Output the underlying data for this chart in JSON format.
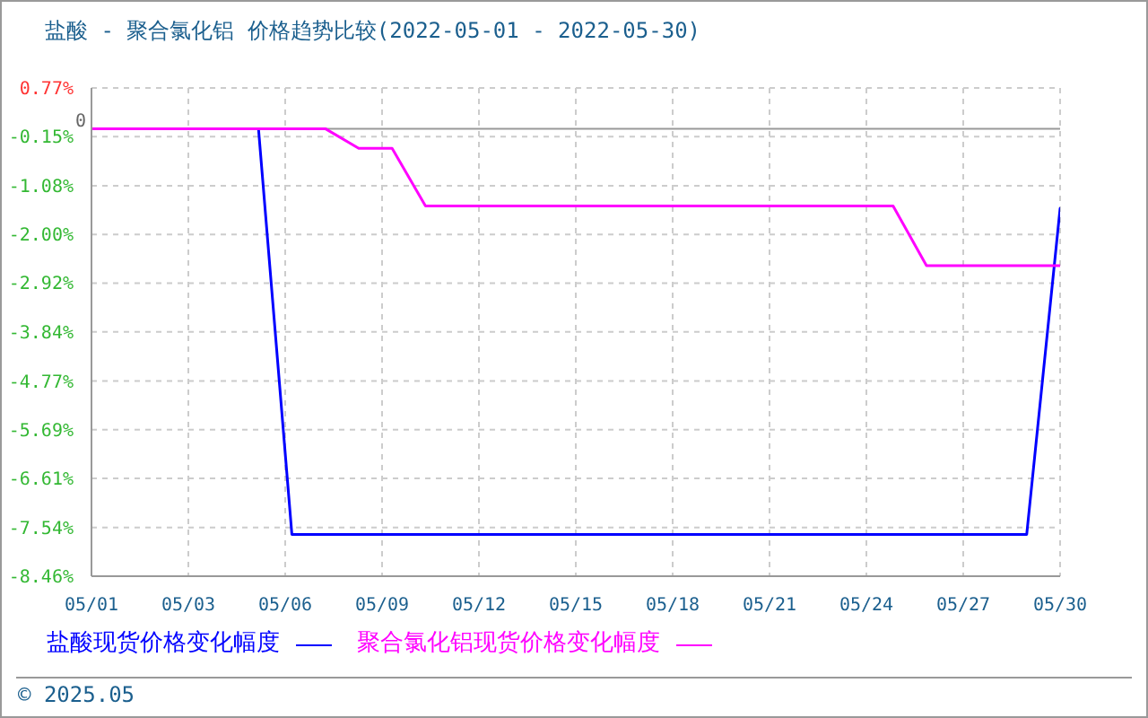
{
  "chart_data": {
    "type": "line",
    "title": "盐酸 - 聚合氯化铝 价格趋势比较(2022-05-01 - 2022-05-30)",
    "x": [
      "2022-05-01",
      "2022-05-02",
      "2022-05-03",
      "2022-05-04",
      "2022-05-05",
      "2022-05-06",
      "2022-05-07",
      "2022-05-08",
      "2022-05-09",
      "2022-05-10",
      "2022-05-11",
      "2022-05-12",
      "2022-05-13",
      "2022-05-14",
      "2022-05-15",
      "2022-05-16",
      "2022-05-17",
      "2022-05-18",
      "2022-05-19",
      "2022-05-20",
      "2022-05-21",
      "2022-05-22",
      "2022-05-23",
      "2022-05-24",
      "2022-05-25",
      "2022-05-26",
      "2022-05-27",
      "2022-05-28",
      "2022-05-29",
      "2022-05-30"
    ],
    "series": [
      {
        "name": "盐酸现货价格变化幅度",
        "color": "#0000ff",
        "values": [
          null,
          null,
          null,
          null,
          null,
          0,
          -7.67,
          -7.67,
          -7.67,
          -7.67,
          -7.67,
          -7.67,
          -7.67,
          -7.67,
          -7.67,
          -7.67,
          -7.67,
          -7.67,
          -7.67,
          -7.67,
          -7.67,
          -7.67,
          -7.67,
          -7.67,
          -7.67,
          -7.67,
          -7.67,
          -7.67,
          -7.67,
          -1.51
        ]
      },
      {
        "name": "聚合氯化铝现货价格变化幅度",
        "color": "#ff00ff",
        "values": [
          0,
          0,
          0,
          0,
          0,
          0,
          0,
          0,
          -0.37,
          -0.37,
          -1.46,
          -1.46,
          -1.46,
          -1.46,
          -1.46,
          -1.46,
          -1.46,
          -1.46,
          -1.46,
          -1.46,
          -1.46,
          -1.46,
          -1.46,
          -1.46,
          -1.46,
          -2.59,
          -2.59,
          -2.59,
          -2.59,
          -2.59
        ]
      }
    ],
    "xlim": [
      "2022-05-01",
      "2022-05-30"
    ],
    "xticks": [
      {
        "value": "2022-05-01",
        "label": "05/01"
      },
      {
        "value": "2022-05-03T21:36",
        "label": "05/03"
      },
      {
        "value": "2022-05-06T19:12",
        "label": "05/06"
      },
      {
        "value": "2022-05-09T16:48",
        "label": "05/09"
      },
      {
        "value": "2022-05-12T14:24",
        "label": "05/12"
      },
      {
        "value": "2022-05-15T12:00",
        "label": "05/15"
      },
      {
        "value": "2022-05-18T09:36",
        "label": "05/18"
      },
      {
        "value": "2022-05-21T07:12",
        "label": "05/21"
      },
      {
        "value": "2022-05-24T04:48",
        "label": "05/24"
      },
      {
        "value": "2022-05-27T02:24",
        "label": "05/27"
      },
      {
        "value": "2022-05-30",
        "label": "05/30"
      }
    ],
    "ylim": [
      -8.46,
      0.77
    ],
    "yticks": [
      {
        "value": 0.77,
        "label": "0.77%"
      },
      {
        "value": -0.15,
        "label": "-0.15%"
      },
      {
        "value": -1.08,
        "label": "-1.08%"
      },
      {
        "value": -2.0,
        "label": "-2.00%"
      },
      {
        "value": -2.92,
        "label": "-2.92%"
      },
      {
        "value": -3.84,
        "label": "-3.84%"
      },
      {
        "value": -4.77,
        "label": "-4.77%"
      },
      {
        "value": -5.69,
        "label": "-5.69%"
      },
      {
        "value": -6.61,
        "label": "-6.61%"
      },
      {
        "value": -7.54,
        "label": "-7.54%"
      },
      {
        "value": -8.46,
        "label": "-8.46%"
      }
    ],
    "grid": true,
    "legend": "bottom",
    "ref_lines": [
      {
        "axis": "y",
        "value": 0,
        "label": "0",
        "color": "#999999"
      }
    ],
    "annotations": [
      "© 2025.05"
    ]
  }
}
